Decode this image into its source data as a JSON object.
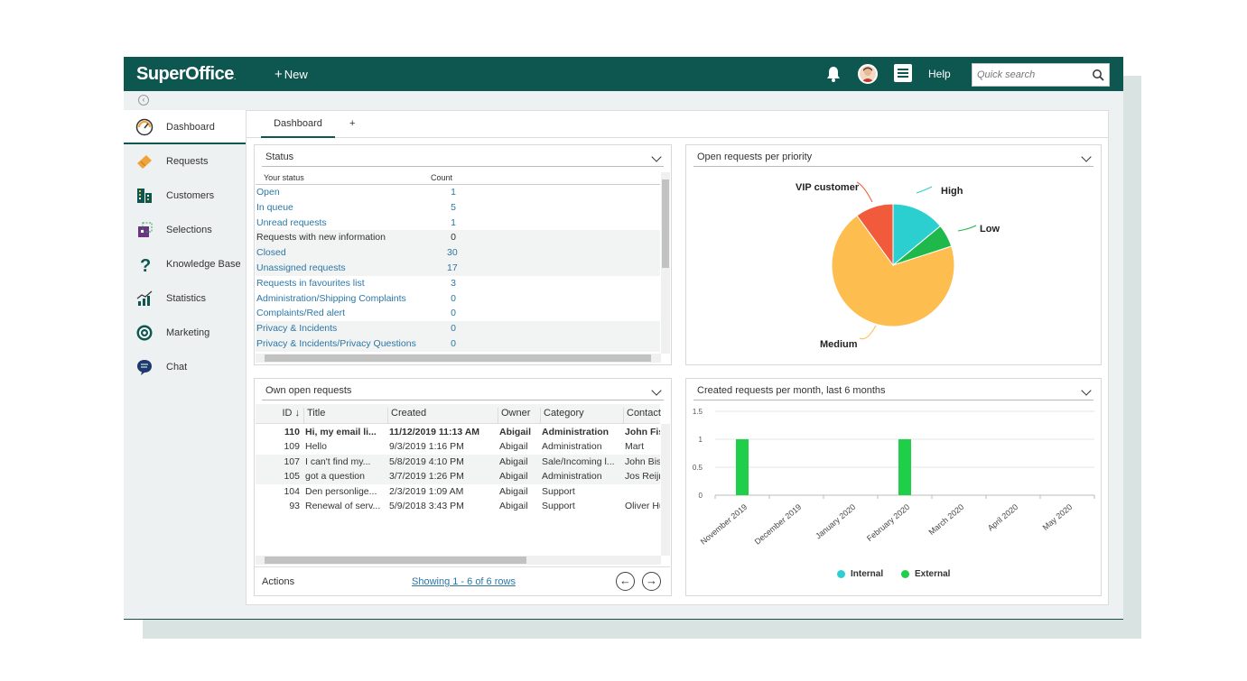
{
  "app": {
    "logo": "SuperOffice",
    "logo_mark": ".",
    "new_label": "New",
    "help_label": "Help",
    "search_placeholder": "Quick search"
  },
  "sidebar": {
    "items": [
      {
        "label": "Dashboard",
        "icon": "dashboard-gauge-icon",
        "active": true
      },
      {
        "label": "Requests",
        "icon": "ticket-icon"
      },
      {
        "label": "Customers",
        "icon": "building-icon"
      },
      {
        "label": "Selections",
        "icon": "selection-icon"
      },
      {
        "label": "Knowledge Base",
        "icon": "question-icon"
      },
      {
        "label": "Statistics",
        "icon": "bar-chart-icon"
      },
      {
        "label": "Marketing",
        "icon": "target-icon"
      },
      {
        "label": "Chat",
        "icon": "chat-bubble-icon"
      }
    ]
  },
  "tabs": {
    "dashboard": "Dashboard",
    "add": "+"
  },
  "status_panel": {
    "title": "Status",
    "col_status": "Your status",
    "col_count": "Count",
    "rows": [
      {
        "label": "Open",
        "count": "1",
        "link": true
      },
      {
        "label": "In queue",
        "count": "5",
        "link": true
      },
      {
        "label": "Unread requests",
        "count": "1",
        "link": true
      },
      {
        "label": "Requests with new information",
        "count": "0",
        "link": false
      },
      {
        "label": "Closed",
        "count": "30",
        "link": true
      },
      {
        "label": "Unassigned requests",
        "count": "17",
        "link": true
      },
      {
        "label": "Requests in favourites list",
        "count": "3",
        "link": true
      },
      {
        "label": "Administration/Shipping Complaints",
        "count": "0",
        "link": true
      },
      {
        "label": "Complaints/Red alert",
        "count": "0",
        "link": true
      },
      {
        "label": "Privacy & Incidents",
        "count": "0",
        "link": true
      },
      {
        "label": "Privacy & Incidents/Privacy Questions",
        "count": "0",
        "link": true
      }
    ]
  },
  "priority_panel": {
    "title": "Open requests per priority",
    "chart_data": {
      "type": "pie",
      "title": "Open requests per priority",
      "slices": [
        {
          "label": "High",
          "value": 14,
          "color": "#2ccfcf"
        },
        {
          "label": "Low",
          "value": 6,
          "color": "#1fb84a"
        },
        {
          "label": "Medium",
          "value": 70,
          "color": "#fdbd4f"
        },
        {
          "label": "VIP customer",
          "value": 10,
          "color": "#f15a3a"
        }
      ]
    }
  },
  "own_panel": {
    "title": "Own open requests",
    "columns": {
      "id": "ID ↓",
      "title": "Title",
      "created": "Created",
      "owner": "Owner",
      "category": "Category",
      "contact": "Contact"
    },
    "rows": [
      {
        "id": "110",
        "title": "Hi, my email li...",
        "created": "11/12/2019 11:13 AM",
        "owner": "Abigail",
        "category": "Administration",
        "contact": "John Fis",
        "bold": true
      },
      {
        "id": "109",
        "title": "Hello",
        "created": "9/3/2019 1:16 PM",
        "owner": "Abigail",
        "category": "Administration",
        "contact": "Mart"
      },
      {
        "id": "107",
        "title": "I can't find my...",
        "created": "5/8/2019 4:10 PM",
        "owner": "Abigail",
        "category": "Sale/Incoming l...",
        "contact": "John Bisl"
      },
      {
        "id": "105",
        "title": "got a question",
        "created": "3/7/2019 1:26 PM",
        "owner": "Abigail",
        "category": "Administration",
        "contact": "Jos Reijri"
      },
      {
        "id": "104",
        "title": "Den personlige...",
        "created": "2/3/2019 1:09 AM",
        "owner": "Abigail",
        "category": "Support",
        "contact": ""
      },
      {
        "id": "93",
        "title": "Renewal of serv...",
        "created": "5/9/2018 3:43 PM",
        "owner": "Abigail",
        "category": "Support",
        "contact": "Oliver Hu"
      }
    ],
    "actions_label": "Actions",
    "showing_label": "Showing 1 - 6 of 6 rows",
    "prev_icon": "←",
    "next_icon": "→"
  },
  "monthly_panel": {
    "title": "Created requests per month, last 6 months",
    "chart_data": {
      "type": "bar",
      "title": "Created requests per month, last 6 months",
      "categories": [
        "November 2019",
        "December 2019",
        "January 2020",
        "February 2020",
        "March 2020",
        "April 2020",
        "May 2020"
      ],
      "series": [
        {
          "name": "Internal",
          "color": "#2ccfcf",
          "values": [
            0,
            0,
            0,
            0,
            0,
            0,
            0
          ]
        },
        {
          "name": "External",
          "color": "#1fcf4a",
          "values": [
            1,
            0,
            0,
            1,
            0,
            0,
            0
          ]
        }
      ],
      "ylim": [
        0,
        1.5
      ],
      "yticks": [
        "1.5",
        "1",
        "0.5",
        "0"
      ],
      "legend": "bottom"
    }
  }
}
